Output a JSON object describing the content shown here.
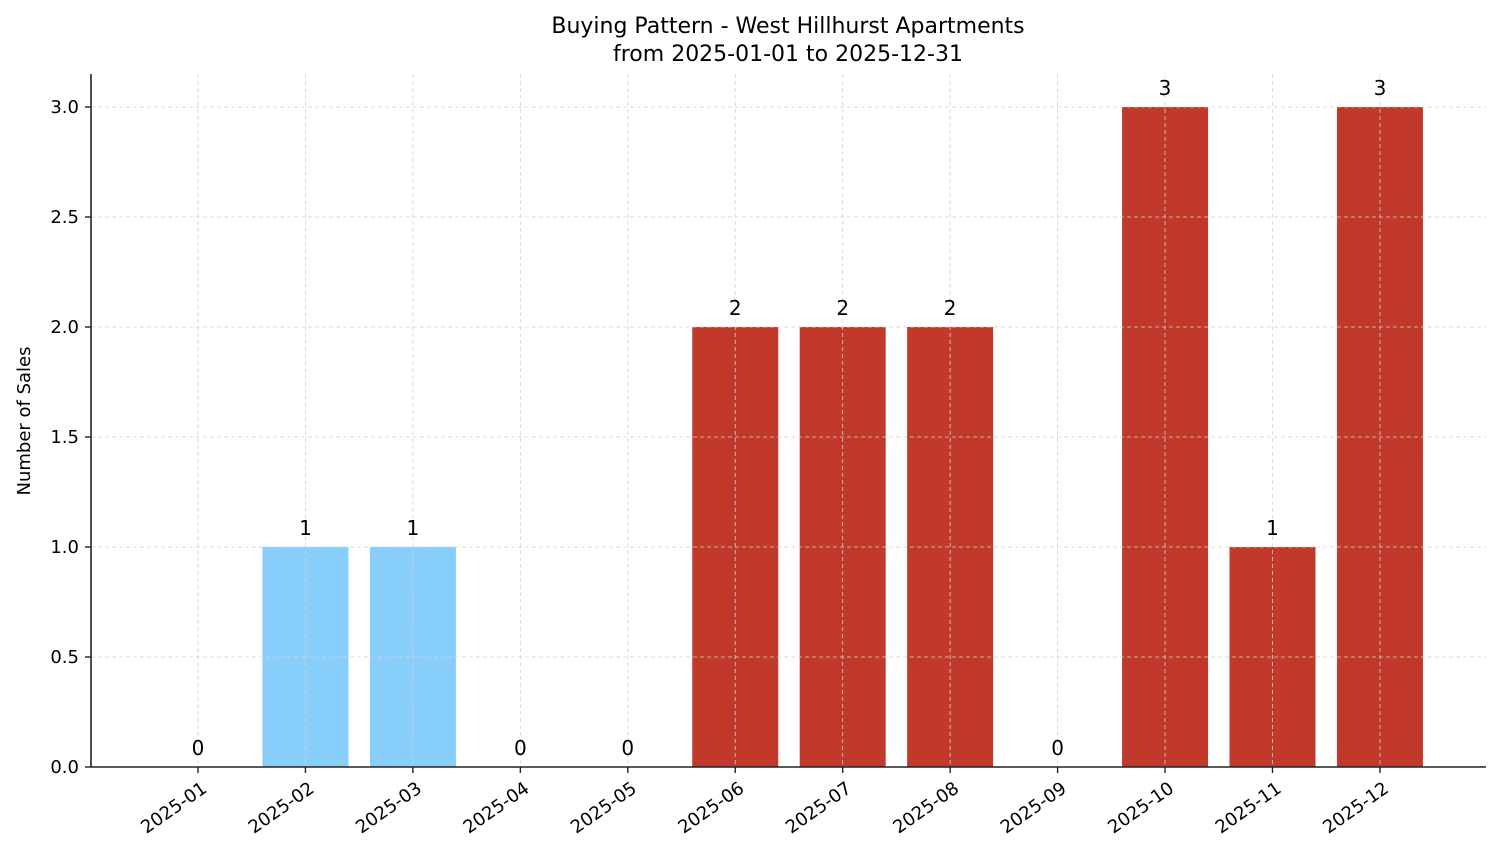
{
  "chart_data": {
    "type": "bar",
    "title": "Buying Pattern - West Hillhurst Apartments",
    "subtitle": "from 2025-01-01 to 2025-12-31",
    "xlabel": "",
    "ylabel": "Number of Sales",
    "categories": [
      "2025-01",
      "2025-02",
      "2025-03",
      "2025-04",
      "2025-05",
      "2025-06",
      "2025-07",
      "2025-08",
      "2025-09",
      "2025-10",
      "2025-11",
      "2025-12"
    ],
    "values": [
      0,
      1,
      1,
      0,
      0,
      2,
      2,
      2,
      0,
      3,
      1,
      3
    ],
    "bar_colors": [
      "#87CEFA",
      "#87CEFA",
      "#87CEFA",
      "#87CEFA",
      "#87CEFA",
      "#C0392B",
      "#C0392B",
      "#C0392B",
      "#C0392B",
      "#C0392B",
      "#C0392B",
      "#C0392B"
    ],
    "data_labels": [
      "0",
      "1",
      "1",
      "0",
      "0",
      "2",
      "2",
      "2",
      "0",
      "3",
      "1",
      "3"
    ],
    "ylim": [
      0,
      3.15
    ],
    "yticks": [
      0.0,
      0.5,
      1.0,
      1.5,
      2.0,
      2.5,
      3.0
    ],
    "ytick_labels": [
      "0.0",
      "0.5",
      "1.0",
      "1.5",
      "2.0",
      "2.5",
      "3.0"
    ],
    "grid": true,
    "grid_style": "dashed",
    "legend": null,
    "xtick_rotation": 35
  },
  "colors": {
    "light_blue": "#87CEFA",
    "red": "#C0392B",
    "grid": "#d3d3d3",
    "axis": "#222222"
  }
}
